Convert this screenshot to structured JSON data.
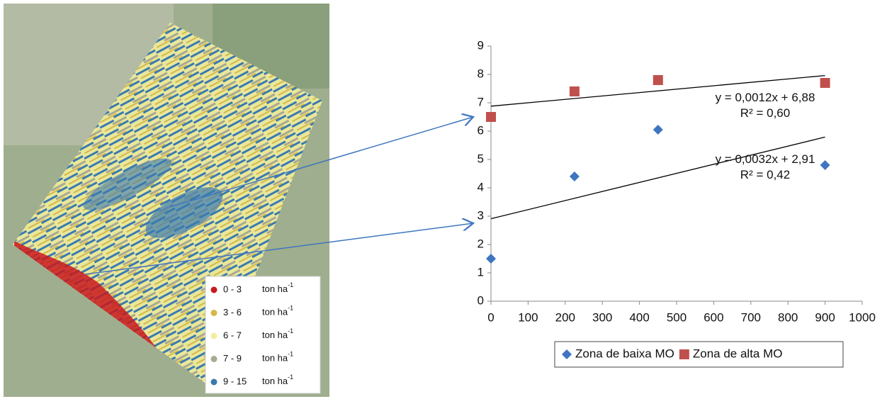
{
  "map_legend": [
    {
      "range": "0 - 3",
      "unit": "ton ha",
      "exponent": "-1",
      "color": "#c8191e"
    },
    {
      "range": "3 - 6",
      "unit": "ton ha",
      "exponent": "-1",
      "color": "#d4b84a"
    },
    {
      "range": "6 - 7",
      "unit": "ton ha",
      "exponent": "-1",
      "color": "#f3eea0"
    },
    {
      "range": "7 - 9",
      "unit": "ton ha",
      "exponent": "-1",
      "color": "#aaa990"
    },
    {
      "range": "9 - 15",
      "unit": "ton ha",
      "exponent": "-1",
      "color": "#3a7ab0"
    }
  ],
  "chart_data": {
    "type": "scatter",
    "xlim": [
      0,
      1000
    ],
    "xticks": [
      0,
      100,
      200,
      300,
      400,
      500,
      600,
      700,
      800,
      900,
      1000
    ],
    "ylim": [
      0,
      9
    ],
    "yticks": [
      0,
      1,
      2,
      3,
      4,
      5,
      6,
      7,
      8,
      9
    ],
    "series": [
      {
        "name": "Zona de baixa MO",
        "color": "#3f75c0",
        "marker": "diamond",
        "x": [
          0,
          225,
          450,
          900
        ],
        "values": [
          1.5,
          4.4,
          6.05,
          4.8
        ]
      },
      {
        "name": "Zona de alta MO",
        "color": "#c0504d",
        "marker": "square",
        "x": [
          0,
          225,
          450,
          900
        ],
        "values": [
          6.5,
          7.4,
          7.8,
          7.7
        ]
      }
    ],
    "trendlines": [
      {
        "series": 1,
        "slope": 0.0012,
        "intercept": 6.88,
        "equation": "y = 0,0012x + 6,88",
        "r2": "R² = 0,60"
      },
      {
        "series": 0,
        "slope": 0.0032,
        "intercept": 2.91,
        "equation": "y = 0,0032x + 2,91",
        "r2": "R² = 0,42"
      }
    ],
    "legend": "bottom"
  }
}
